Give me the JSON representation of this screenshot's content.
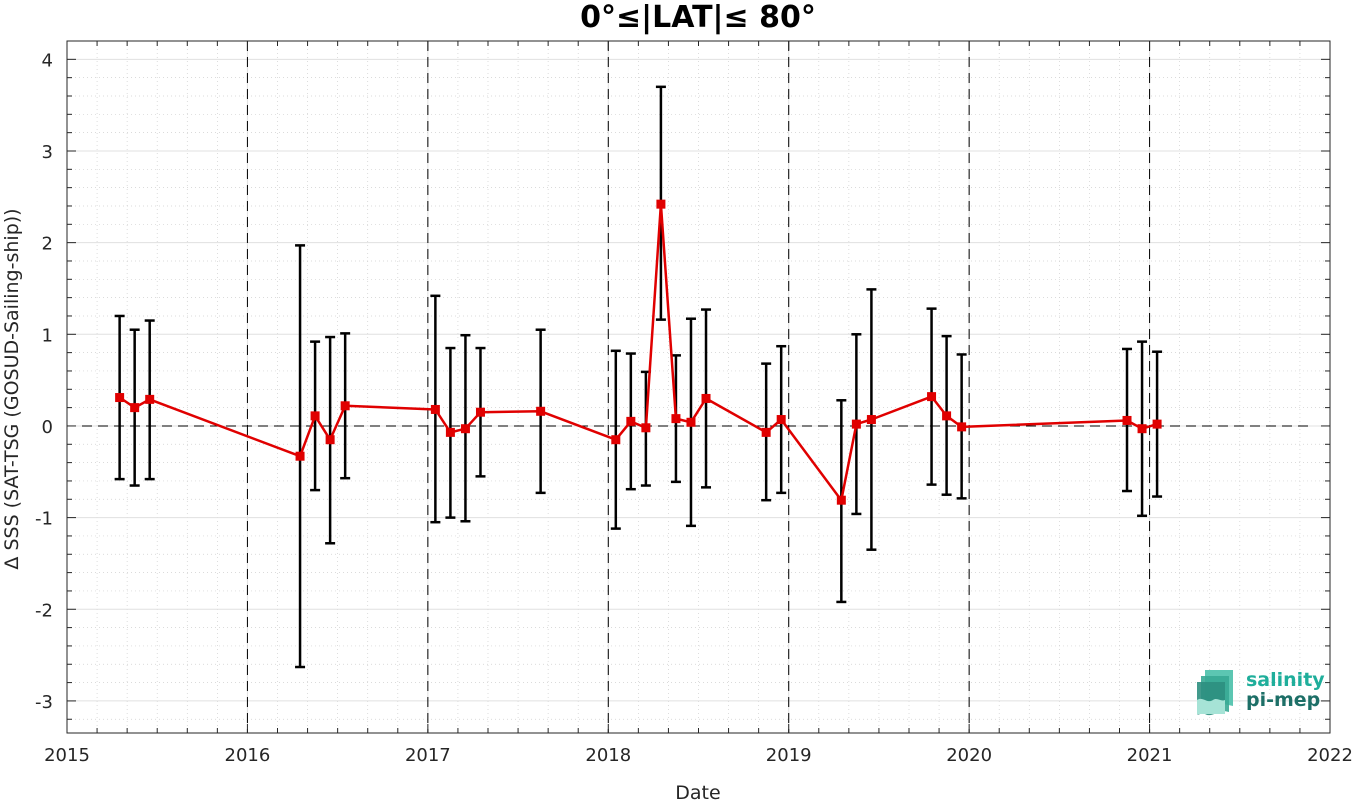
{
  "chart_data": {
    "type": "line",
    "title": "0°≤|LAT|≤ 80°",
    "xlabel": "Date",
    "ylabel": "Δ SSS (SAT-TSG (GOSUD-Sailing-ship))",
    "xlim": [
      2015,
      2022
    ],
    "ylim": [
      -3.35,
      4.2
    ],
    "x_ticks": [
      "2015",
      "2016",
      "2017",
      "2018",
      "2019",
      "2020",
      "2021",
      "2022"
    ],
    "y_ticks": [
      "-3",
      "-2",
      "-1",
      "0",
      "1",
      "2",
      "3",
      "4"
    ],
    "grid": "on (major and minor, dotted)",
    "year_separators": [
      "2016",
      "2017",
      "2018",
      "2019",
      "2020",
      "2021"
    ],
    "zero_reference_line": true,
    "series": [
      {
        "color": "#e00000",
        "marker": "square",
        "errorbar_color": "#000000",
        "points": [
          {
            "x": "2015-04",
            "y": 0.31,
            "err_low": -0.58,
            "err_high": 1.2
          },
          {
            "x": "2015-05",
            "y": 0.2,
            "err_low": -0.65,
            "err_high": 1.05
          },
          {
            "x": "2015-06",
            "y": 0.29,
            "err_low": -0.58,
            "err_high": 1.15
          },
          {
            "x": "2016-04",
            "y": -0.33,
            "err_low": -2.63,
            "err_high": 1.97
          },
          {
            "x": "2016-05",
            "y": 0.11,
            "err_low": -0.7,
            "err_high": 0.92
          },
          {
            "x": "2016-06",
            "y": -0.15,
            "err_low": -1.28,
            "err_high": 0.97
          },
          {
            "x": "2016-07",
            "y": 0.22,
            "err_low": -0.57,
            "err_high": 1.01
          },
          {
            "x": "2017-01",
            "y": 0.18,
            "err_low": -1.05,
            "err_high": 1.42
          },
          {
            "x": "2017-02",
            "y": -0.07,
            "err_low": -1.0,
            "err_high": 0.85
          },
          {
            "x": "2017-03",
            "y": -0.03,
            "err_low": -1.04,
            "err_high": 0.99
          },
          {
            "x": "2017-04",
            "y": 0.15,
            "err_low": -0.55,
            "err_high": 0.85
          },
          {
            "x": "2017-08",
            "y": 0.16,
            "err_low": -0.73,
            "err_high": 1.05
          },
          {
            "x": "2018-01",
            "y": -0.15,
            "err_low": -1.12,
            "err_high": 0.82
          },
          {
            "x": "2018-02",
            "y": 0.05,
            "err_low": -0.69,
            "err_high": 0.79
          },
          {
            "x": "2018-03",
            "y": -0.02,
            "err_low": -0.65,
            "err_high": 0.59
          },
          {
            "x": "2018-04",
            "y": 2.42,
            "err_low": 1.16,
            "err_high": 3.7
          },
          {
            "x": "2018-05",
            "y": 0.08,
            "err_low": -0.61,
            "err_high": 0.77
          },
          {
            "x": "2018-06",
            "y": 0.04,
            "err_low": -1.09,
            "err_high": 1.17
          },
          {
            "x": "2018-07",
            "y": 0.3,
            "err_low": -0.67,
            "err_high": 1.27
          },
          {
            "x": "2018-11",
            "y": -0.07,
            "err_low": -0.81,
            "err_high": 0.68
          },
          {
            "x": "2018-12",
            "y": 0.07,
            "err_low": -0.73,
            "err_high": 0.87
          },
          {
            "x": "2019-04",
            "y": -0.81,
            "err_low": -1.92,
            "err_high": 0.28
          },
          {
            "x": "2019-05",
            "y": 0.02,
            "err_low": -0.96,
            "err_high": 1.0
          },
          {
            "x": "2019-06",
            "y": 0.07,
            "err_low": -1.35,
            "err_high": 1.49
          },
          {
            "x": "2019-10",
            "y": 0.32,
            "err_low": -0.64,
            "err_high": 1.28
          },
          {
            "x": "2019-11",
            "y": 0.11,
            "err_low": -0.75,
            "err_high": 0.98
          },
          {
            "x": "2019-12",
            "y": -0.01,
            "err_low": -0.79,
            "err_high": 0.78
          },
          {
            "x": "2020-11",
            "y": 0.06,
            "err_low": -0.71,
            "err_high": 0.84
          },
          {
            "x": "2020-12",
            "y": -0.03,
            "err_low": -0.98,
            "err_high": 0.92
          },
          {
            "x": "2021-01",
            "y": 0.02,
            "err_low": -0.77,
            "err_high": 0.81
          }
        ]
      }
    ]
  },
  "logo": {
    "line1": "salinity",
    "line2": "pi-mep",
    "color_line1": "#1fae9b",
    "color_line2": "#1d6f67"
  }
}
